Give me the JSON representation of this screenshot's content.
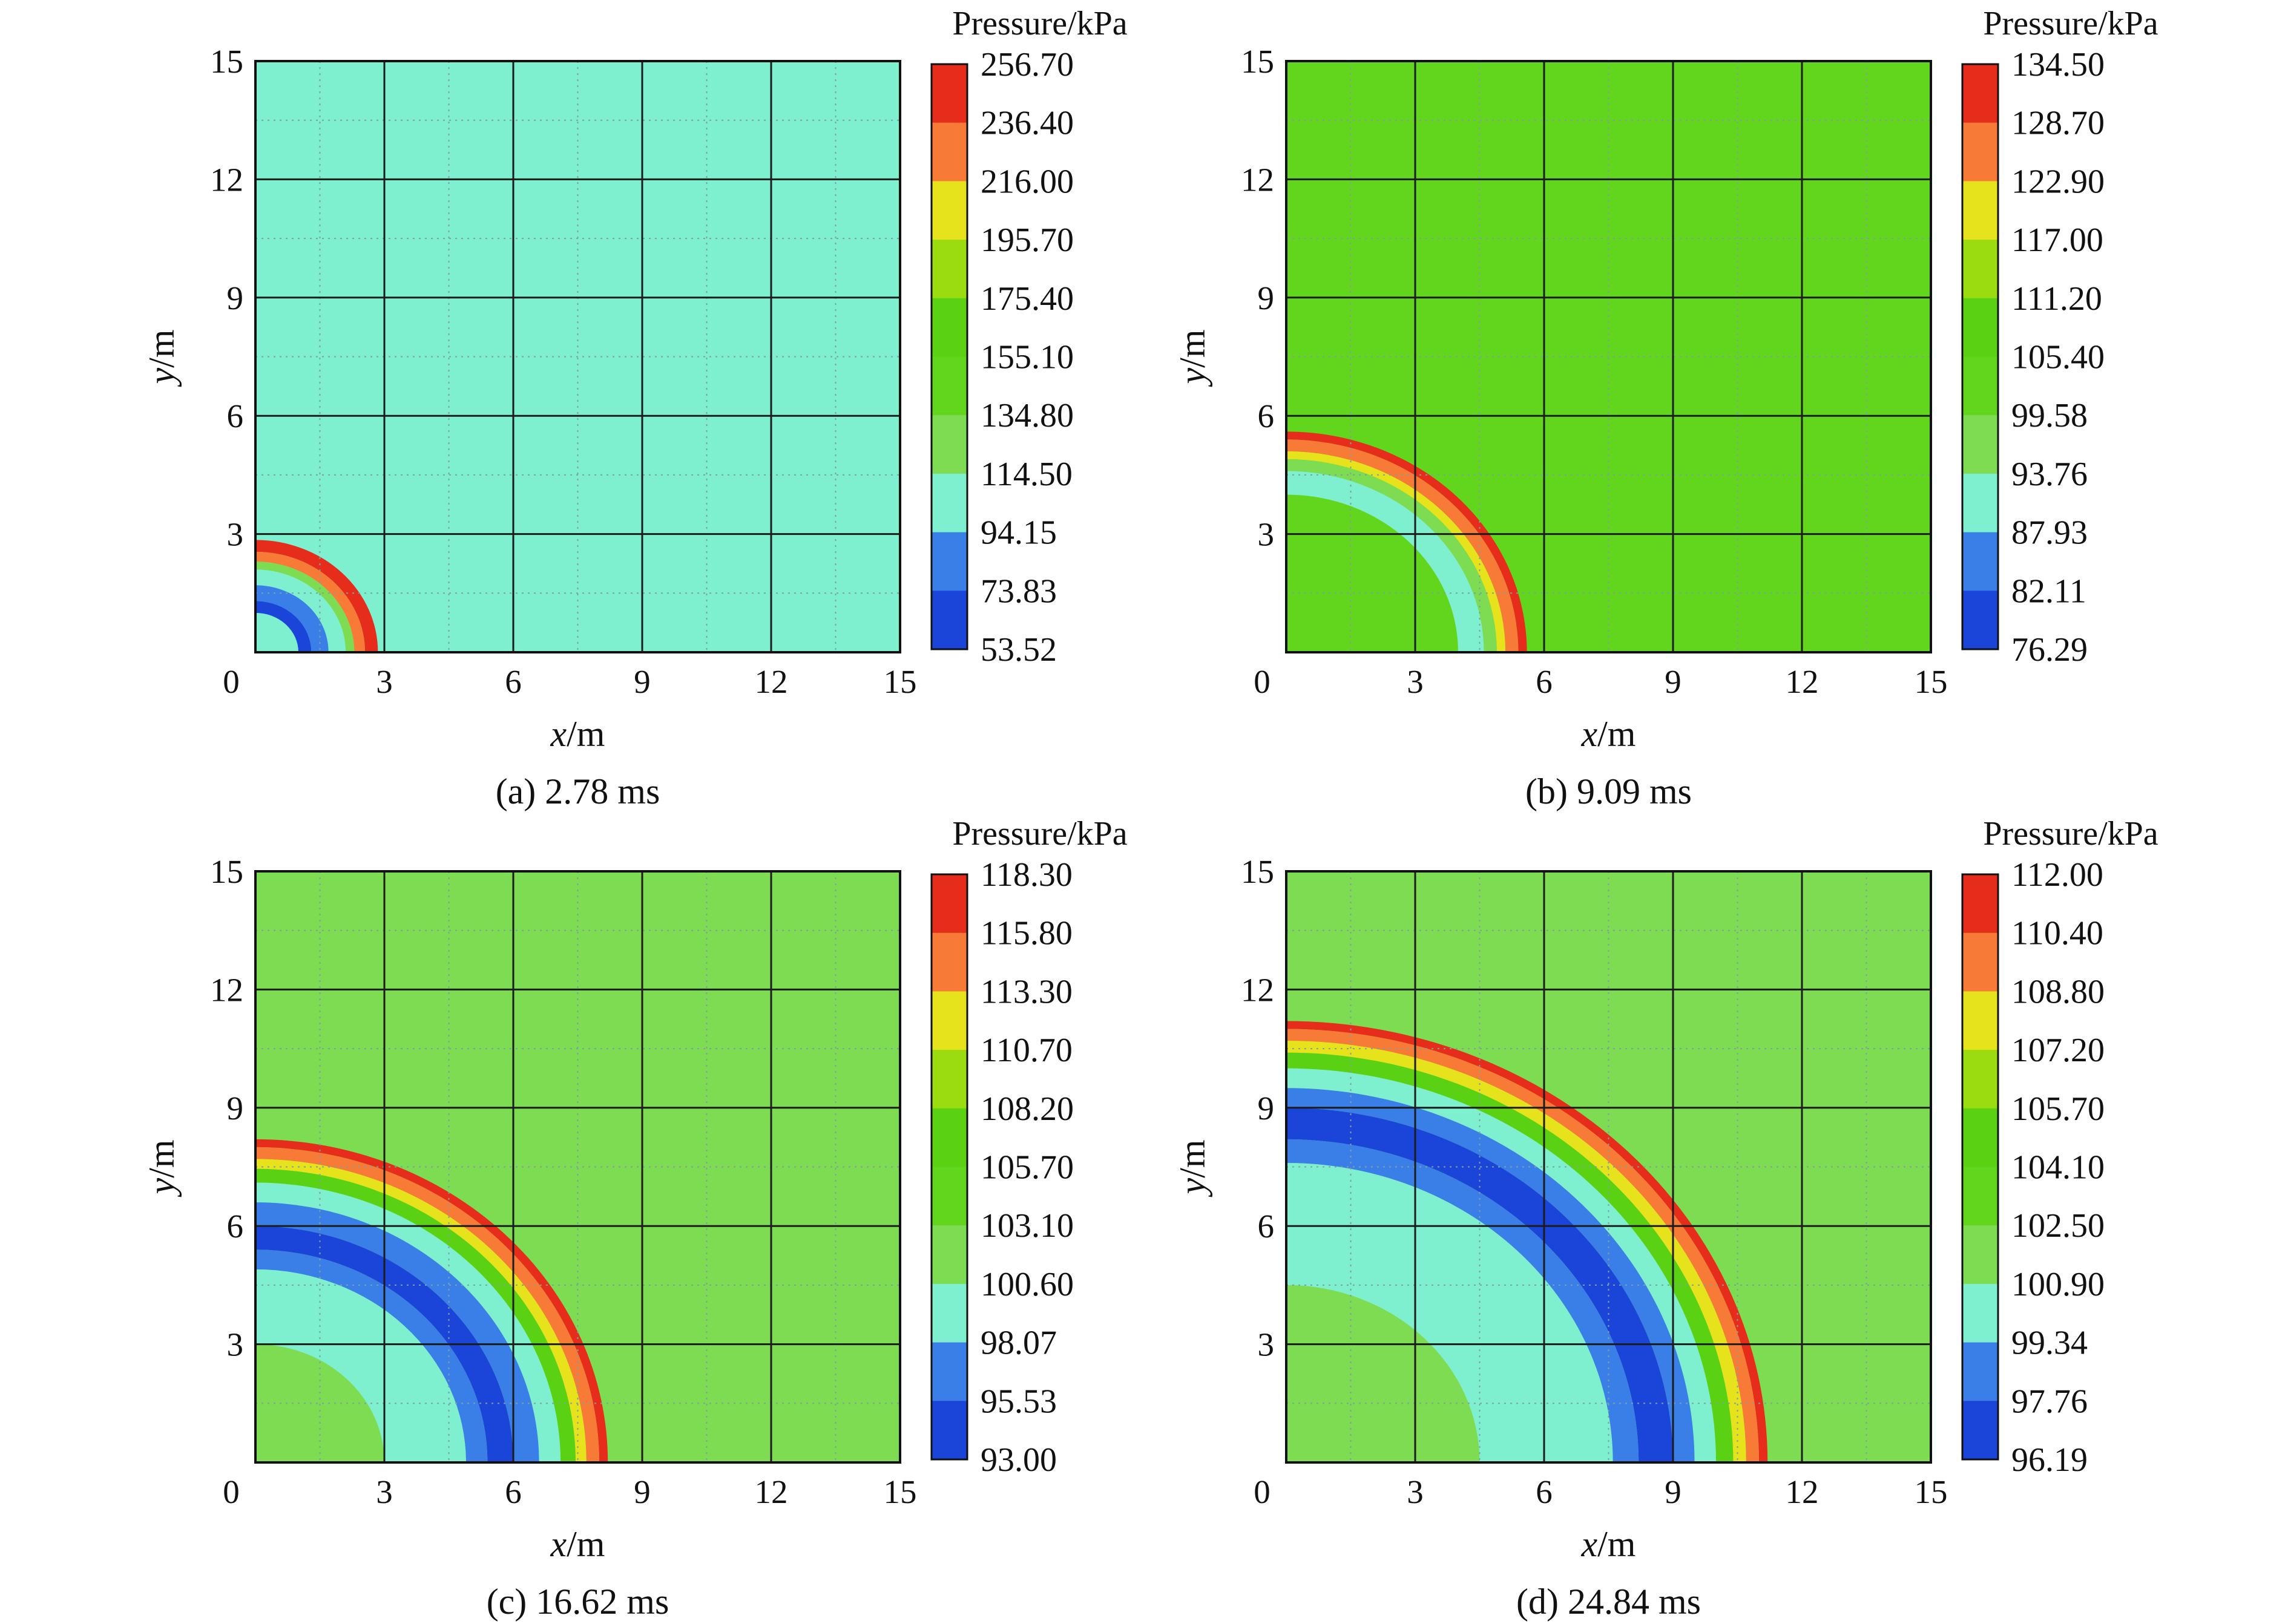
{
  "figure": {
    "colors": [
      "#1a45d8",
      "#3a7fe8",
      "#7ef0cf",
      "#7ddc52",
      "#62d61c",
      "#5bd113",
      "#9bdc10",
      "#e6e31c",
      "#f77a36",
      "#e62c1a"
    ],
    "panels": [
      {
        "caption": "(a) 2.78 ms",
        "colorbar_title": "Pressure/kPa",
        "colorbar_ticks": [
          "256.70",
          "236.40",
          "216.00",
          "195.70",
          "175.40",
          "155.10",
          "134.80",
          "114.50",
          "94.15",
          "73.83",
          "53.52"
        ],
        "background_level": 2,
        "front_radius": 2.85,
        "rings": [
          {
            "ro": 2.85,
            "ri": 2.55,
            "c": 9
          },
          {
            "ro": 2.55,
            "ri": 2.3,
            "c": 8
          },
          {
            "ro": 2.3,
            "ri": 2.1,
            "c": 3
          },
          {
            "ro": 1.7,
            "ri": 1.3,
            "c": 1
          },
          {
            "ro": 1.3,
            "ri": 1.0,
            "c": 0
          }
        ]
      },
      {
        "caption": "(b) 9.09 ms",
        "colorbar_title": "Pressure/kPa",
        "colorbar_ticks": [
          "134.50",
          "128.70",
          "122.90",
          "117.00",
          "111.20",
          "105.40",
          "99.58",
          "93.76",
          "87.93",
          "82.11",
          "76.29"
        ],
        "background_level": 4,
        "front_radius": 5.6,
        "rings": [
          {
            "ro": 5.6,
            "ri": 5.4,
            "c": 9
          },
          {
            "ro": 5.4,
            "ri": 5.1,
            "c": 8
          },
          {
            "ro": 5.1,
            "ri": 4.9,
            "c": 7
          },
          {
            "ro": 4.9,
            "ri": 4.6,
            "c": 3
          },
          {
            "ro": 4.6,
            "ri": 4.0,
            "c": 2
          }
        ]
      },
      {
        "caption": "(c) 16.62 ms",
        "colorbar_title": "Pressure/kPa",
        "colorbar_ticks": [
          "118.30",
          "115.80",
          "113.30",
          "110.70",
          "108.20",
          "105.70",
          "103.10",
          "100.60",
          "98.07",
          "95.53",
          "93.00"
        ],
        "background_level": 3,
        "front_radius": 8.2,
        "rings": [
          {
            "ro": 8.2,
            "ri": 8.0,
            "c": 9
          },
          {
            "ro": 8.0,
            "ri": 7.7,
            "c": 8
          },
          {
            "ro": 7.7,
            "ri": 7.45,
            "c": 7
          },
          {
            "ro": 7.45,
            "ri": 7.1,
            "c": 5
          },
          {
            "ro": 7.1,
            "ri": 6.6,
            "c": 2
          },
          {
            "ro": 6.6,
            "ri": 6.0,
            "c": 1
          },
          {
            "ro": 6.0,
            "ri": 5.4,
            "c": 0
          },
          {
            "ro": 5.4,
            "ri": 4.9,
            "c": 1
          },
          {
            "ro": 4.9,
            "ri": 3.0,
            "c": 2
          }
        ]
      },
      {
        "caption": "(d) 24.84 ms",
        "colorbar_title": "Pressure/kPa",
        "colorbar_ticks": [
          "112.00",
          "110.40",
          "108.80",
          "107.20",
          "105.70",
          "104.10",
          "102.50",
          "100.90",
          "99.34",
          "97.76",
          "96.19"
        ],
        "background_level": 3,
        "front_radius": 11.2,
        "rings": [
          {
            "ro": 11.2,
            "ri": 11.0,
            "c": 9
          },
          {
            "ro": 11.0,
            "ri": 10.7,
            "c": 8
          },
          {
            "ro": 10.7,
            "ri": 10.4,
            "c": 7
          },
          {
            "ro": 10.4,
            "ri": 10.0,
            "c": 5
          },
          {
            "ro": 10.0,
            "ri": 9.5,
            "c": 2
          },
          {
            "ro": 9.5,
            "ri": 9.0,
            "c": 1
          },
          {
            "ro": 9.0,
            "ri": 8.2,
            "c": 0
          },
          {
            "ro": 8.2,
            "ri": 7.6,
            "c": 1
          },
          {
            "ro": 7.6,
            "ri": 4.5,
            "c": 2
          }
        ]
      }
    ]
  },
  "chart_data": [
    {
      "type": "heatmap",
      "title": "(a) 2.78 ms",
      "xlabel": "x/m",
      "ylabel": "y/m",
      "xlim": [
        0,
        15
      ],
      "ylim": [
        0,
        15
      ],
      "xticks": [
        0,
        3,
        6,
        9,
        12,
        15
      ],
      "yticks": [
        0,
        3,
        6,
        9,
        12,
        15
      ],
      "grid": true,
      "colorbar_label": "Pressure/kPa",
      "colorbar_levels": [
        256.7,
        236.4,
        216.0,
        195.7,
        175.4,
        155.1,
        134.8,
        114.5,
        94.15,
        73.83,
        53.52
      ],
      "shock_front_radius_m": 2.85
    },
    {
      "type": "heatmap",
      "title": "(b) 9.09 ms",
      "xlabel": "x/m",
      "ylabel": "y/m",
      "xlim": [
        0,
        15
      ],
      "ylim": [
        0,
        15
      ],
      "xticks": [
        0,
        3,
        6,
        9,
        12,
        15
      ],
      "yticks": [
        0,
        3,
        6,
        9,
        12,
        15
      ],
      "grid": true,
      "colorbar_label": "Pressure/kPa",
      "colorbar_levels": [
        134.5,
        128.7,
        122.9,
        117.0,
        111.2,
        105.4,
        99.58,
        93.76,
        87.93,
        82.11,
        76.29
      ],
      "shock_front_radius_m": 5.6
    },
    {
      "type": "heatmap",
      "title": "(c) 16.62 ms",
      "xlabel": "x/m",
      "ylabel": "y/m",
      "xlim": [
        0,
        15
      ],
      "ylim": [
        0,
        15
      ],
      "xticks": [
        0,
        3,
        6,
        9,
        12,
        15
      ],
      "yticks": [
        0,
        3,
        6,
        9,
        12,
        15
      ],
      "grid": true,
      "colorbar_label": "Pressure/kPa",
      "colorbar_levels": [
        118.3,
        115.8,
        113.3,
        110.7,
        108.2,
        105.7,
        103.1,
        100.6,
        98.07,
        95.53,
        93.0
      ],
      "shock_front_radius_m": 8.2
    },
    {
      "type": "heatmap",
      "title": "(d) 24.84 ms",
      "xlabel": "x/m",
      "ylabel": "y/m",
      "xlim": [
        0,
        15
      ],
      "ylim": [
        0,
        15
      ],
      "xticks": [
        0,
        3,
        6,
        9,
        12,
        15
      ],
      "yticks": [
        0,
        3,
        6,
        9,
        12,
        15
      ],
      "grid": true,
      "colorbar_label": "Pressure/kPa",
      "colorbar_levels": [
        112.0,
        110.4,
        108.8,
        107.2,
        105.7,
        104.1,
        102.5,
        100.9,
        99.34,
        97.76,
        96.19
      ],
      "shock_front_radius_m": 11.2
    }
  ]
}
